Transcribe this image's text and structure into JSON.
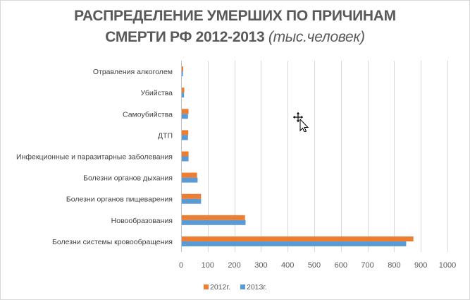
{
  "chart_data": {
    "type": "bar",
    "orientation": "horizontal",
    "title_line1": "РАСПРЕДЕЛЕНИЕ УМЕРШИХ ПО ПРИЧИНАМ",
    "title_line2": "СМЕРТИ РФ 2012-2013",
    "title_unit": "(тыс.человек)",
    "categories": [
      "Отравления алкоголем",
      "Убийства",
      "Самоубийства",
      "ДТП",
      "Инфекционные и паразитарные заболевания",
      "Болезни органов дыхания",
      "Болезни органов пищеварения",
      "Новообразования",
      "Болезни системы кровообращения"
    ],
    "series": [
      {
        "name": "2012г.",
        "color": "#ED7D31",
        "values": [
          8,
          12,
          28,
          27,
          28,
          60,
          75,
          240,
          872
        ]
      },
      {
        "name": "2013г.",
        "color": "#5B9BD5",
        "values": [
          7,
          11,
          26,
          26,
          28,
          62,
          75,
          242,
          845
        ]
      }
    ],
    "xlim": [
      0,
      1000
    ],
    "xticks": [
      0,
      100,
      200,
      300,
      400,
      500,
      600,
      700,
      800,
      900,
      1000
    ],
    "grid": true,
    "legend": "bottom"
  }
}
